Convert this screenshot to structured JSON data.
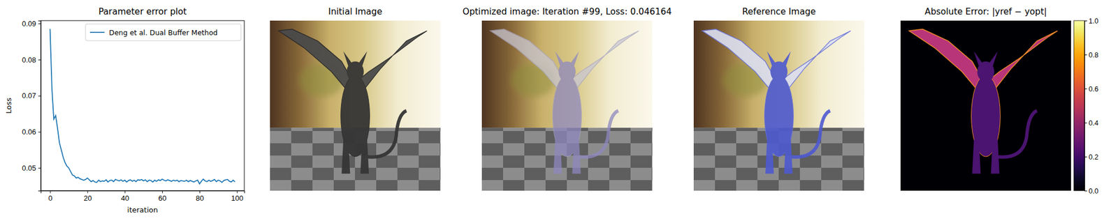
{
  "chart_data": {
    "type": "line",
    "title": "Parameter error plot",
    "x_label": "iteration",
    "y_label": "Loss",
    "x": [
      0,
      1,
      2,
      3,
      4,
      5,
      6,
      7,
      8,
      9,
      10,
      11,
      12,
      13,
      14,
      15,
      16,
      17,
      18,
      19,
      20,
      21,
      22,
      23,
      24,
      25,
      26,
      27,
      28,
      29,
      30,
      31,
      32,
      33,
      34,
      35,
      36,
      37,
      38,
      39,
      40,
      41,
      42,
      43,
      44,
      45,
      46,
      47,
      48,
      49,
      50,
      51,
      52,
      53,
      54,
      55,
      56,
      57,
      58,
      59,
      60,
      61,
      62,
      63,
      64,
      65,
      66,
      67,
      68,
      69,
      70,
      71,
      72,
      73,
      74,
      75,
      76,
      77,
      78,
      79,
      80,
      81,
      82,
      83,
      84,
      85,
      86,
      87,
      88,
      89,
      90,
      91,
      92,
      93,
      94,
      95,
      96,
      97,
      98,
      99
    ],
    "series": [
      {
        "name": "Deng et al. Dual Buffer Method",
        "color": "#1f77b4",
        "values": [
          0.0885,
          0.072,
          0.0635,
          0.0645,
          0.061,
          0.057,
          0.055,
          0.053,
          0.0515,
          0.0505,
          0.05,
          0.049,
          0.048,
          0.0478,
          0.0472,
          0.0474,
          0.047,
          0.0468,
          0.0466,
          0.0468,
          0.0472,
          0.0467,
          0.0462,
          0.0465,
          0.0461,
          0.046,
          0.0466,
          0.0462,
          0.0464,
          0.0463,
          0.0467,
          0.0461,
          0.0465,
          0.0466,
          0.0462,
          0.0468,
          0.0466,
          0.0464,
          0.0467,
          0.0463,
          0.0466,
          0.0461,
          0.0465,
          0.0467,
          0.0463,
          0.0466,
          0.0462,
          0.0467,
          0.0466,
          0.0468,
          0.0464,
          0.0467,
          0.0462,
          0.0466,
          0.0465,
          0.0461,
          0.0466,
          0.0463,
          0.0467,
          0.0465,
          0.0469,
          0.0466,
          0.0464,
          0.0467,
          0.0465,
          0.0463,
          0.0466,
          0.0464,
          0.0466,
          0.0462,
          0.0465,
          0.0464,
          0.0463,
          0.0466,
          0.0462,
          0.0465,
          0.0463,
          0.0461,
          0.0464,
          0.0466,
          0.0456,
          0.0463,
          0.0469,
          0.0464,
          0.0462,
          0.0466,
          0.0463,
          0.0465,
          0.0468,
          0.0462,
          0.0466,
          0.0464,
          0.046,
          0.0465,
          0.0467,
          0.0468,
          0.0463,
          0.0461,
          0.0466,
          0.04616
        ]
      }
    ],
    "xlim": [
      -4.95,
      103.95
    ],
    "ylim": [
      0.0437,
      0.0908
    ],
    "xticks": [
      0,
      20,
      40,
      60,
      80,
      100
    ],
    "yticks": [
      0.05,
      0.06,
      0.07,
      0.08,
      0.09
    ],
    "legend": "upper right",
    "grid": false
  },
  "images": [
    {
      "title": "Initial Image"
    },
    {
      "title": "Optimized image: Iteration #99, Loss: 0.046164"
    },
    {
      "title": "Reference Image"
    },
    {
      "title": "Absolute Error: |yref − yopt|"
    }
  ],
  "colorbar": {
    "range": [
      0,
      1
    ],
    "ticks": [
      {
        "value": 0,
        "label": "0.0"
      },
      0.2,
      0.4,
      0.6,
      0.8,
      {
        "value": 1,
        "label": "1.0"
      }
    ]
  }
}
